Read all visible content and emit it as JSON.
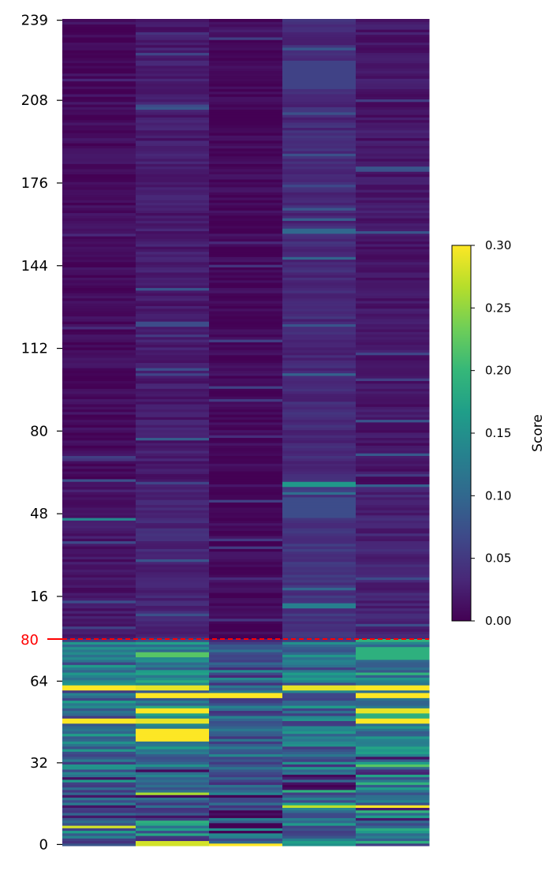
{
  "chart_data": {
    "type": "heatmap",
    "title": "",
    "xlabel": "",
    "ylabel": "",
    "columns": 5,
    "y_tick_labels_upper": [
      "239",
      "208",
      "176",
      "144",
      "112",
      "80",
      "48",
      "16"
    ],
    "y_tick_labels_lower": [
      "64",
      "32",
      "0"
    ],
    "boundary": {
      "label": "80",
      "color": "#ff0000",
      "style": "dashed"
    },
    "colorbar": {
      "label": "Score",
      "colormap": "viridis",
      "range": [
        0.0,
        0.3
      ],
      "tick_labels": [
        "0.00",
        "0.05",
        "0.10",
        "0.15",
        "0.20",
        "0.25",
        "0.30"
      ],
      "colors": [
        "#440154",
        "#482878",
        "#3e4989",
        "#31688e",
        "#26828e",
        "#1f9e89",
        "#35b779",
        "#6ece58",
        "#b5de2b",
        "#fde725"
      ]
    },
    "segments": [
      {
        "name": "upper",
        "rows": 240,
        "range": [
          0,
          239
        ]
      },
      {
        "name": "lower",
        "rows": 81,
        "range": [
          0,
          80
        ]
      }
    ],
    "bands": [
      {
        "col": 0,
        "seg": "lower",
        "from": 61,
        "to": 62,
        "value": 0.3
      },
      {
        "col": 1,
        "seg": "lower",
        "from": 61,
        "to": 62,
        "value": 0.29
      },
      {
        "col": 3,
        "seg": "lower",
        "from": 61,
        "to": 62,
        "value": 0.29
      },
      {
        "col": 4,
        "seg": "lower",
        "from": 61,
        "to": 62,
        "value": 0.3
      },
      {
        "col": 2,
        "seg": "lower",
        "from": 58,
        "to": 59,
        "value": 0.3
      },
      {
        "col": 1,
        "seg": "lower",
        "from": 58,
        "to": 59,
        "value": 0.3
      },
      {
        "col": 4,
        "seg": "lower",
        "from": 58,
        "to": 59,
        "value": 0.3
      },
      {
        "col": 1,
        "seg": "lower",
        "from": 52,
        "to": 53,
        "value": 0.3
      },
      {
        "col": 4,
        "seg": "lower",
        "from": 52,
        "to": 53,
        "value": 0.29
      },
      {
        "col": 0,
        "seg": "lower",
        "from": 48,
        "to": 49,
        "value": 0.3
      },
      {
        "col": 1,
        "seg": "lower",
        "from": 48,
        "to": 49,
        "value": 0.29
      },
      {
        "col": 4,
        "seg": "lower",
        "from": 48,
        "to": 49,
        "value": 0.3
      },
      {
        "col": 1,
        "seg": "lower",
        "from": 41,
        "to": 45,
        "value": 0.3
      },
      {
        "col": 1,
        "seg": "lower",
        "from": 20,
        "to": 20,
        "value": 0.26
      },
      {
        "col": 4,
        "seg": "lower",
        "from": 15,
        "to": 15,
        "value": 0.3
      },
      {
        "col": 3,
        "seg": "lower",
        "from": 15,
        "to": 15,
        "value": 0.27
      },
      {
        "col": 0,
        "seg": "lower",
        "from": 7,
        "to": 7,
        "value": 0.28
      },
      {
        "col": 1,
        "seg": "lower",
        "from": 0,
        "to": 1,
        "value": 0.28
      },
      {
        "col": 2,
        "seg": "lower",
        "from": 0,
        "to": 0,
        "value": 0.3
      },
      {
        "col": 3,
        "seg": "lower",
        "from": 21,
        "to": 21,
        "value": 0.19
      },
      {
        "col": 4,
        "seg": "lower",
        "from": 31,
        "to": 31,
        "value": 0.22
      },
      {
        "col": 1,
        "seg": "lower",
        "from": 74,
        "to": 75,
        "value": 0.22
      },
      {
        "col": 4,
        "seg": "lower",
        "from": 73,
        "to": 77,
        "value": 0.19
      },
      {
        "col": 0,
        "seg": "upper",
        "from": 46,
        "to": 46,
        "value": 0.14
      },
      {
        "col": 3,
        "seg": "upper",
        "from": 59,
        "to": 60,
        "value": 0.16
      },
      {
        "col": 3,
        "seg": "upper",
        "from": 12,
        "to": 13,
        "value": 0.13
      },
      {
        "col": 3,
        "seg": "upper",
        "from": 47,
        "to": 54,
        "value": 0.07
      },
      {
        "col": 3,
        "seg": "upper",
        "from": 157,
        "to": 158,
        "value": 0.1
      },
      {
        "col": 3,
        "seg": "upper",
        "from": 213,
        "to": 223,
        "value": 0.06
      },
      {
        "col": 1,
        "seg": "upper",
        "from": 121,
        "to": 122,
        "value": 0.07
      },
      {
        "col": 1,
        "seg": "upper",
        "from": 205,
        "to": 205,
        "value": 0.08
      }
    ]
  }
}
